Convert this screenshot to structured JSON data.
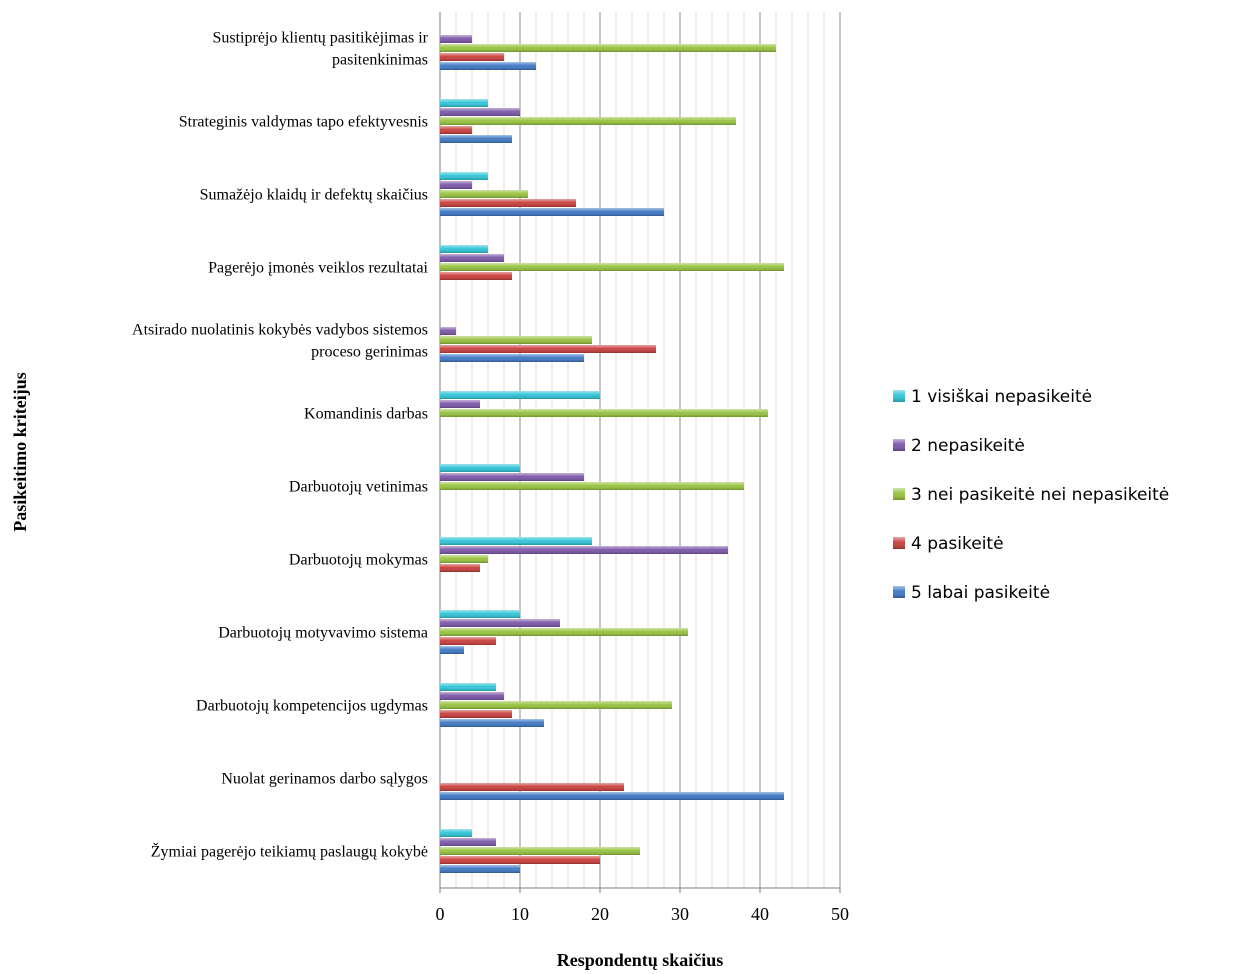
{
  "chart_data": {
    "type": "bar",
    "orientation": "horizontal",
    "xlabel": "Respondentų skaičius",
    "ylabel": "Pasikeitimo kriteijus",
    "xlim": [
      0,
      50
    ],
    "xticks": [
      0,
      10,
      20,
      30,
      40,
      50
    ],
    "grid": "vertical",
    "legend_position": "right",
    "categories": [
      [
        "Sustiprėjo klientų pasitikėjimas ir",
        "pasitenkinimas"
      ],
      [
        "Strateginis valdymas tapo efektyvesnis"
      ],
      [
        "Sumažėjo klaidų ir defektų skaičius"
      ],
      [
        "Pagerėjo įmonės veiklos rezultatai"
      ],
      [
        "Atsirado nuolatinis kokybės vadybos sistemos",
        "proceso gerinimas"
      ],
      [
        "Komandinis darbas"
      ],
      [
        "Darbuotojų vetinimas"
      ],
      [
        "Darbuotojų mokymas"
      ],
      [
        "Darbuotojų motyvavimo sistema"
      ],
      [
        "Darbuotojų kompetencijos ugdymas"
      ],
      [
        "Nuolat gerinamos darbo sąlygos"
      ],
      [
        "Žymiai pagerėjo teikiamų paslaugų kokybė"
      ]
    ],
    "series": [
      {
        "name": "1 visiškai nepasikeitė",
        "color": "#2ec4d8",
        "values": [
          0,
          6,
          6,
          6,
          0,
          20,
          10,
          19,
          10,
          7,
          0,
          4
        ]
      },
      {
        "name": "2 nepasikeitė",
        "color": "#7a55a8",
        "values": [
          4,
          10,
          4,
          8,
          2,
          5,
          18,
          36,
          15,
          8,
          0,
          7
        ]
      },
      {
        "name": "3 nei pasikeitė nei nepasikeitė",
        "color": "#96c23c",
        "values": [
          42,
          37,
          11,
          43,
          19,
          41,
          38,
          6,
          31,
          29,
          0,
          25
        ]
      },
      {
        "name": "4 pasikeitė",
        "color": "#c83c3a",
        "values": [
          8,
          4,
          17,
          9,
          27,
          0,
          0,
          5,
          7,
          9,
          23,
          20
        ]
      },
      {
        "name": "5 labai pasikeitė",
        "color": "#3c76c4",
        "values": [
          12,
          9,
          28,
          0,
          18,
          0,
          0,
          0,
          3,
          13,
          43,
          10
        ]
      }
    ]
  }
}
